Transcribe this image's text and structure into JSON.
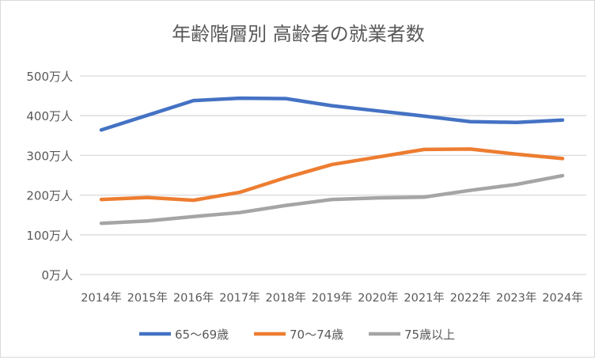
{
  "chart_data": {
    "type": "line",
    "title": "年齢階層別 高齢者の就業者数",
    "xlabel": "",
    "ylabel": "",
    "categories": [
      "2014年",
      "2015年",
      "2016年",
      "2017年",
      "2018年",
      "2019年",
      "2020年",
      "2021年",
      "2022年",
      "2023年",
      "2024年"
    ],
    "ylim": [
      0,
      500
    ],
    "yticks": [
      0,
      100,
      200,
      300,
      400,
      500
    ],
    "ytick_labels": [
      "0万人",
      "100万人",
      "200万人",
      "300万人",
      "400万人",
      "500万人"
    ],
    "grid": true,
    "legend_position": "bottom",
    "series": [
      {
        "name": "65〜69歳",
        "color": "#4472c4",
        "values": [
          364,
          401,
          438,
          444,
          443,
          425,
          412,
          399,
          385,
          383,
          389
        ]
      },
      {
        "name": "70〜74歳",
        "color": "#ed7d31",
        "values": [
          189,
          194,
          187,
          207,
          244,
          277,
          296,
          315,
          316,
          303,
          292
        ]
      },
      {
        "name": "75歳以上",
        "color": "#a5a5a5",
        "values": [
          129,
          135,
          146,
          156,
          174,
          189,
          193,
          195,
          212,
          227,
          249
        ]
      }
    ]
  }
}
